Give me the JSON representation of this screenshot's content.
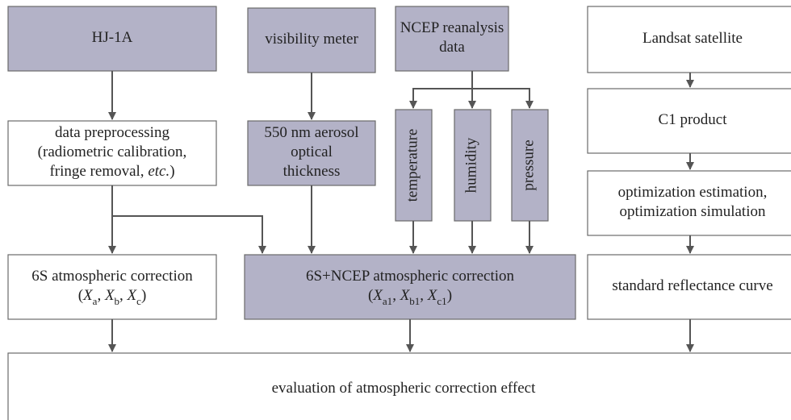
{
  "nodes": [
    {
      "lines": [
        [
          {
            "text": "HJ-1A"
          }
        ]
      ]
    },
    {
      "lines": [
        [
          {
            "text": "visibility meter"
          }
        ]
      ]
    },
    {
      "lines": [
        [
          {
            "text": "NCEP reanalysis"
          }
        ],
        [
          {
            "text": "data"
          }
        ]
      ]
    },
    {
      "lines": [
        [
          {
            "text": "Landsat satellite"
          }
        ]
      ]
    },
    {
      "lines": [
        [
          {
            "text": "data preprocessing"
          }
        ],
        [
          {
            "text": "(radiometric calibration,"
          }
        ],
        [
          {
            "text": "fringe removal, "
          },
          {
            "text": "etc.",
            "style": "italic"
          },
          {
            "text": ")"
          }
        ]
      ]
    },
    {
      "lines": [
        [
          {
            "text": "550 nm aerosol"
          }
        ],
        [
          {
            "text": "optical"
          }
        ],
        [
          {
            "text": "thickness"
          }
        ]
      ]
    },
    {
      "lines": [
        [
          {
            "text": "temperature"
          }
        ]
      ],
      "vertical": true
    },
    {
      "lines": [
        [
          {
            "text": "humidity"
          }
        ]
      ],
      "vertical": true
    },
    {
      "lines": [
        [
          {
            "text": "pressure"
          }
        ]
      ],
      "vertical": true
    },
    {
      "lines": [
        [
          {
            "text": "C1 product"
          }
        ]
      ]
    },
    {
      "lines": [
        [
          {
            "text": "optimization estimation,"
          }
        ],
        [
          {
            "text": "optimization simulation"
          }
        ]
      ]
    },
    {
      "lines": [
        [
          {
            "text": "6S atmospheric correction"
          }
        ],
        [
          {
            "text": "("
          },
          {
            "text": "X",
            "style": "italic"
          },
          {
            "text": "a",
            "style": "sub"
          },
          {
            "text": ", "
          },
          {
            "text": "X",
            "style": "italic"
          },
          {
            "text": "b",
            "style": "sub"
          },
          {
            "text": ", "
          },
          {
            "text": "X",
            "style": "italic"
          },
          {
            "text": "c",
            "style": "sub"
          },
          {
            "text": ")"
          }
        ]
      ]
    },
    {
      "lines": [
        [
          {
            "text": "6S+NCEP atmospheric correction"
          }
        ],
        [
          {
            "text": "("
          },
          {
            "text": "X",
            "style": "italic"
          },
          {
            "text": "a1",
            "style": "sub"
          },
          {
            "text": ", "
          },
          {
            "text": "X",
            "style": "italic"
          },
          {
            "text": "b1",
            "style": "sub"
          },
          {
            "text": ", "
          },
          {
            "text": "X",
            "style": "italic"
          },
          {
            "text": "c1",
            "style": "sub"
          },
          {
            "text": ")"
          }
        ]
      ]
    },
    {
      "lines": [
        [
          {
            "text": "standard reflectance curve"
          }
        ]
      ]
    },
    {
      "lines": [
        [
          {
            "text": "evaluation of atmospheric correction effect"
          }
        ]
      ]
    }
  ]
}
